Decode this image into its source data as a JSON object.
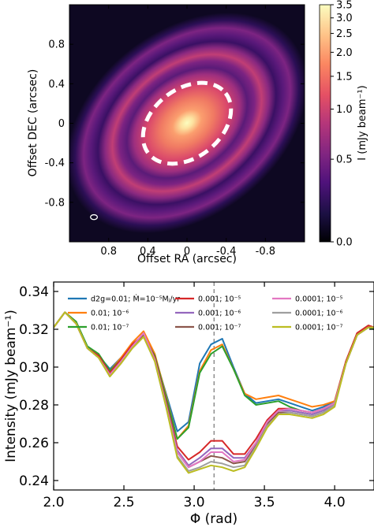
{
  "chart_data": [
    {
      "type": "heatmap",
      "xlabel": "Offset RA (arcsec)",
      "ylabel": "Offset DEC (arcsec)",
      "xlim": [
        1.2,
        -1.2
      ],
      "ylim": [
        -1.2,
        1.2
      ],
      "x_ticks": [
        0.8,
        0.4,
        0,
        -0.4,
        -0.8
      ],
      "x_tick_labels": [
        "0.8",
        "0.4",
        "0",
        "-0.4",
        "-0.8"
      ],
      "y_ticks": [
        0.8,
        0.4,
        0,
        -0.4,
        -0.8
      ],
      "y_tick_labels": [
        "0.8",
        "0.4",
        "0",
        "-0.4",
        "-0.8"
      ],
      "colorbar": {
        "label": "I (mJy beam⁻¹)",
        "ticks": [
          0.0,
          0.5,
          1.0,
          1.5,
          2.0,
          2.5,
          3.0,
          3.5
        ],
        "tick_labels": [
          "0.0",
          "0.5",
          "1.0",
          "1.5",
          "2.0",
          "2.5",
          "3.0",
          "3.5"
        ],
        "range": [
          0.0,
          3.5
        ],
        "colormap": "magma",
        "colors": [
          "#000004",
          "#1c1044",
          "#4f127b",
          "#812581",
          "#b5367a",
          "#e55064",
          "#fb8761",
          "#fec287",
          "#fcfdbf"
        ]
      },
      "disk": {
        "inclination_deg": 38,
        "position_angle_deg": 52,
        "rings_arcsec": [
          0.0,
          0.45,
          0.7,
          0.95
        ]
      },
      "highlight_ellipse": {
        "center": [
          0.0,
          0.0
        ],
        "semi_major": 0.5,
        "semi_minor": 0.35,
        "position_angle_deg": 52,
        "color": "#ffffff",
        "style": "dashed"
      },
      "beam": {
        "center": [
          0.95,
          -0.95
        ],
        "semi_major": 0.035,
        "semi_minor": 0.025,
        "color": "#ffffff"
      }
    },
    {
      "type": "line",
      "xlabel": "Φ (rad)",
      "ylabel": "Intensity (mJy beam⁻¹)",
      "xlim": [
        2.0,
        4.28
      ],
      "ylim": [
        0.235,
        0.345
      ],
      "x_ticks": [
        2.0,
        2.5,
        3.0,
        3.5,
        4.0
      ],
      "x_tick_labels": [
        "2.0",
        "2.5",
        "3.0",
        "3.5",
        "4.0"
      ],
      "y_ticks": [
        0.24,
        0.26,
        0.28,
        0.3,
        0.32,
        0.34
      ],
      "y_tick_labels": [
        "0.24",
        "0.26",
        "0.28",
        "0.30",
        "0.32",
        "0.34"
      ],
      "vline": {
        "x": 3.14159,
        "style": "dashed",
        "color": "#808080"
      },
      "legend_position": "top",
      "x": [
        2.0,
        2.08,
        2.16,
        2.24,
        2.32,
        2.4,
        2.48,
        2.56,
        2.64,
        2.72,
        2.8,
        2.88,
        2.96,
        3.04,
        3.12,
        3.2,
        3.28,
        3.36,
        3.44,
        3.52,
        3.6,
        3.68,
        3.76,
        3.84,
        3.92,
        4.0,
        4.08,
        4.16,
        4.24,
        4.28
      ],
      "series": [
        {
          "name": "d2g=0.01; Ṁ=10⁻⁵Mⱼ/yr",
          "color": "#1f77b4",
          "values": [
            0.321,
            0.329,
            0.324,
            0.31,
            0.306,
            0.299,
            0.305,
            0.312,
            0.317,
            0.306,
            0.286,
            0.266,
            0.271,
            0.302,
            0.312,
            0.315,
            0.3,
            0.286,
            0.281,
            0.282,
            0.283,
            0.281,
            0.279,
            0.277,
            0.279,
            0.282,
            0.303,
            0.318,
            0.322,
            0.321
          ]
        },
        {
          "name": "0.01; 10⁻⁶",
          "color": "#ff7f0e",
          "values": [
            0.321,
            0.329,
            0.324,
            0.31,
            0.305,
            0.298,
            0.305,
            0.313,
            0.319,
            0.307,
            0.285,
            0.262,
            0.269,
            0.298,
            0.309,
            0.312,
            0.299,
            0.286,
            0.283,
            0.284,
            0.285,
            0.283,
            0.281,
            0.279,
            0.28,
            0.282,
            0.303,
            0.318,
            0.322,
            0.321
          ]
        },
        {
          "name": "0.01; 10⁻⁷",
          "color": "#2ca02c",
          "values": [
            0.321,
            0.329,
            0.324,
            0.311,
            0.307,
            0.298,
            0.304,
            0.311,
            0.316,
            0.306,
            0.284,
            0.262,
            0.268,
            0.297,
            0.307,
            0.311,
            0.299,
            0.285,
            0.28,
            0.281,
            0.282,
            0.279,
            0.277,
            0.276,
            0.278,
            0.281,
            0.302,
            0.317,
            0.321,
            0.32
          ]
        },
        {
          "name": "0.001; 10⁻⁵",
          "color": "#d62728",
          "values": [
            0.321,
            0.329,
            0.323,
            0.31,
            0.306,
            0.297,
            0.304,
            0.312,
            0.317,
            0.305,
            0.282,
            0.258,
            0.251,
            0.255,
            0.261,
            0.261,
            0.254,
            0.254,
            0.262,
            0.272,
            0.278,
            0.278,
            0.277,
            0.276,
            0.278,
            0.281,
            0.303,
            0.318,
            0.322,
            0.321
          ]
        },
        {
          "name": "0.001; 10⁻⁶",
          "color": "#9467bd",
          "values": [
            0.321,
            0.329,
            0.323,
            0.31,
            0.305,
            0.296,
            0.303,
            0.311,
            0.317,
            0.304,
            0.281,
            0.256,
            0.248,
            0.252,
            0.257,
            0.257,
            0.252,
            0.252,
            0.26,
            0.271,
            0.277,
            0.277,
            0.276,
            0.275,
            0.277,
            0.28,
            0.302,
            0.317,
            0.321,
            0.321
          ]
        },
        {
          "name": "0.001; 10⁻⁷",
          "color": "#8c564b",
          "values": [
            0.321,
            0.329,
            0.323,
            0.31,
            0.305,
            0.296,
            0.303,
            0.311,
            0.317,
            0.304,
            0.281,
            0.255,
            0.247,
            0.25,
            0.253,
            0.252,
            0.249,
            0.25,
            0.259,
            0.27,
            0.276,
            0.276,
            0.275,
            0.274,
            0.276,
            0.28,
            0.302,
            0.317,
            0.321,
            0.321
          ]
        },
        {
          "name": "0.0001; 10⁻⁵",
          "color": "#e377c2",
          "values": [
            0.321,
            0.329,
            0.323,
            0.31,
            0.305,
            0.296,
            0.303,
            0.311,
            0.318,
            0.304,
            0.28,
            0.255,
            0.247,
            0.25,
            0.255,
            0.255,
            0.25,
            0.251,
            0.26,
            0.271,
            0.277,
            0.278,
            0.277,
            0.276,
            0.278,
            0.281,
            0.302,
            0.317,
            0.321,
            0.321
          ]
        },
        {
          "name": "0.0001; 10⁻⁶",
          "color": "#9f9f9f",
          "values": [
            0.321,
            0.329,
            0.323,
            0.31,
            0.305,
            0.295,
            0.302,
            0.31,
            0.316,
            0.303,
            0.279,
            0.253,
            0.245,
            0.247,
            0.25,
            0.249,
            0.247,
            0.248,
            0.258,
            0.269,
            0.275,
            0.276,
            0.275,
            0.274,
            0.276,
            0.28,
            0.302,
            0.317,
            0.321,
            0.321
          ]
        },
        {
          "name": "0.0001; 10⁻⁷",
          "color": "#bcbd22",
          "values": [
            0.321,
            0.329,
            0.323,
            0.31,
            0.305,
            0.295,
            0.302,
            0.31,
            0.316,
            0.303,
            0.279,
            0.252,
            0.244,
            0.246,
            0.248,
            0.247,
            0.245,
            0.247,
            0.257,
            0.268,
            0.275,
            0.275,
            0.274,
            0.273,
            0.275,
            0.279,
            0.302,
            0.317,
            0.321,
            0.321
          ]
        }
      ]
    }
  ]
}
